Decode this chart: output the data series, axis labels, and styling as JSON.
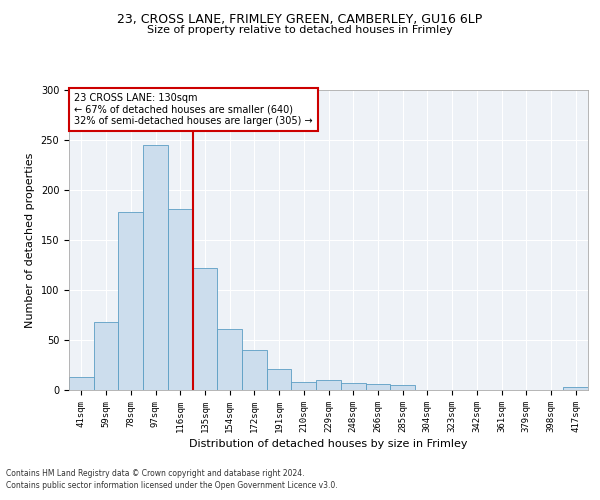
{
  "title1": "23, CROSS LANE, FRIMLEY GREEN, CAMBERLEY, GU16 6LP",
  "title2": "Size of property relative to detached houses in Frimley",
  "xlabel": "Distribution of detached houses by size in Frimley",
  "ylabel": "Number of detached properties",
  "footnote1": "Contains HM Land Registry data © Crown copyright and database right 2024.",
  "footnote2": "Contains public sector information licensed under the Open Government Licence v3.0.",
  "annotation_title": "23 CROSS LANE: 130sqm",
  "annotation_line1": "← 67% of detached houses are smaller (640)",
  "annotation_line2": "32% of semi-detached houses are larger (305) →",
  "bar_color": "#ccdded",
  "bar_edge_color": "#5b9dc4",
  "vline_color": "#cc0000",
  "categories": [
    "41sqm",
    "59sqm",
    "78sqm",
    "97sqm",
    "116sqm",
    "135sqm",
    "154sqm",
    "172sqm",
    "191sqm",
    "210sqm",
    "229sqm",
    "248sqm",
    "266sqm",
    "285sqm",
    "304sqm",
    "323sqm",
    "342sqm",
    "361sqm",
    "379sqm",
    "398sqm",
    "417sqm"
  ],
  "values": [
    13,
    68,
    178,
    245,
    181,
    122,
    61,
    40,
    21,
    8,
    10,
    7,
    6,
    5,
    0,
    0,
    0,
    0,
    0,
    0,
    3
  ],
  "ylim": [
    0,
    300
  ],
  "vline_position": 4.5,
  "background_color": "#eef2f7",
  "grid_color": "#ffffff",
  "title1_fontsize": 9,
  "title2_fontsize": 8,
  "ylabel_fontsize": 8,
  "xlabel_fontsize": 8,
  "tick_fontsize": 6.5,
  "footnote_fontsize": 5.5
}
